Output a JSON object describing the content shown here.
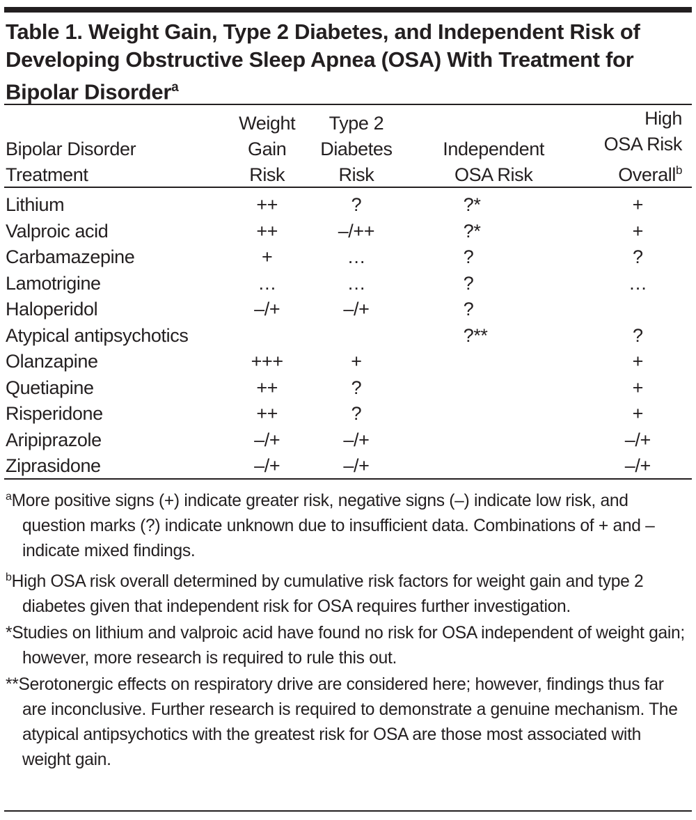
{
  "title": {
    "text": "Table 1. Weight Gain, Type 2 Diabetes, and Independent Risk of Developing Obstructive Sleep Apnea (OSA) With Treatment for Bipolar Disorder",
    "superscript": "a"
  },
  "columns": [
    {
      "lines": [
        "Bipolar Disorder",
        "Treatment"
      ]
    },
    {
      "lines": [
        "Weight",
        "Gain",
        "Risk"
      ]
    },
    {
      "lines": [
        "Type 2",
        "Diabetes",
        "Risk"
      ]
    },
    {
      "lines": [
        "Independent",
        "OSA Risk"
      ]
    },
    {
      "lines": [
        "High",
        "OSA Risk",
        "Overall"
      ],
      "superscript": "b"
    }
  ],
  "rows": [
    [
      "Lithium",
      "++",
      "?",
      "?*",
      "+"
    ],
    [
      "Valproic acid",
      "++",
      "–/++",
      "?*",
      "+"
    ],
    [
      "Carbamazepine",
      "+",
      "…",
      "?",
      "?"
    ],
    [
      "Lamotrigine",
      "…",
      "…",
      "?",
      "…"
    ],
    [
      "Haloperidol",
      "–/+",
      "–/+",
      "?",
      ""
    ],
    [
      "Atypical antipsychotics",
      "",
      "",
      "?**",
      "?"
    ],
    [
      "Olanzapine",
      "+++",
      "+",
      "",
      "+"
    ],
    [
      "Quetiapine",
      "++",
      "?",
      "",
      "+"
    ],
    [
      "Risperidone",
      "++",
      "?",
      "",
      "+"
    ],
    [
      "Aripiprazole",
      "–/+",
      "–/+",
      "",
      "–/+"
    ],
    [
      "Ziprasidone",
      "–/+",
      "–/+",
      "",
      "–/+"
    ]
  ],
  "footnotes": [
    {
      "mark": "a",
      "text": "More positive signs (+) indicate greater risk, negative signs (–) indicate low risk, and question marks (?) indicate unknown due to insufficient data. Combinations of + and – indicate mixed findings."
    },
    {
      "mark": "b",
      "text": "High OSA risk overall determined by cumulative risk factors for weight gain and type 2 diabetes given that independent risk for OSA requires further investigation."
    },
    {
      "mark": "*",
      "text": "Studies on lithium and valproic acid have found no risk for OSA independent of weight gain; however, more research is required to rule this out."
    },
    {
      "mark": "**",
      "text": "Serotonergic effects on respiratory drive are considered here; however, findings thus far are inconclusive. Further research is required to demonstrate a genuine mechanism. The atypical antipsychotics with the greatest risk for OSA are those most associated with weight gain."
    }
  ]
}
